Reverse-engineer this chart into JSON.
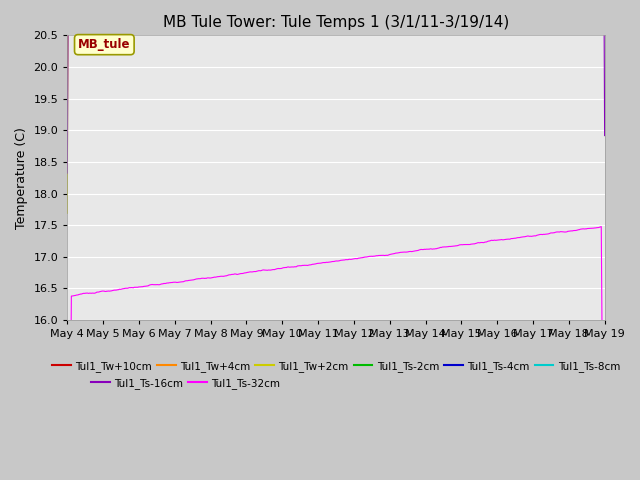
{
  "title": "MB Tule Tower: Tule Temps 1 (3/1/11-3/19/14)",
  "ylabel": "Temperature (C)",
  "xlim": [
    0,
    15
  ],
  "ylim": [
    16.0,
    20.5
  ],
  "yticks": [
    16.0,
    16.5,
    17.0,
    17.5,
    18.0,
    18.5,
    19.0,
    19.5,
    20.0,
    20.5
  ],
  "xtick_labels": [
    "May 4",
    "May 5",
    "May 6",
    "May 7",
    "May 8",
    "May 9",
    "May 10",
    "May 11",
    "May 12",
    "May 13",
    "May 14",
    "May 15",
    "May 16",
    "May 17",
    "May 18",
    "May 19"
  ],
  "fig_bg": "#c8c8c8",
  "plot_bg": "#e8e8e8",
  "grid_color": "#ffffff",
  "series": [
    {
      "label": "Tul1_Tw+10cm",
      "color": "#cc0000",
      "lw": 0.8
    },
    {
      "label": "Tul1_Tw+4cm",
      "color": "#ff8800",
      "lw": 0.8
    },
    {
      "label": "Tul1_Tw+2cm",
      "color": "#cccc00",
      "lw": 0.8
    },
    {
      "label": "Tul1_Ts-2cm",
      "color": "#00bb00",
      "lw": 0.8
    },
    {
      "label": "Tul1_Ts-4cm",
      "color": "#0000cc",
      "lw": 0.8
    },
    {
      "label": "Tul1_Ts-8cm",
      "color": "#00cccc",
      "lw": 0.8
    },
    {
      "label": "Tul1_Ts-16cm",
      "color": "#8800bb",
      "lw": 0.8
    },
    {
      "label": "Tul1_Ts-32cm",
      "color": "#ff00ff",
      "lw": 0.8
    }
  ],
  "annotation_text": "MB_tule",
  "title_fontsize": 11,
  "label_fontsize": 9,
  "tick_fontsize": 8,
  "legend_fontsize": 7.5
}
